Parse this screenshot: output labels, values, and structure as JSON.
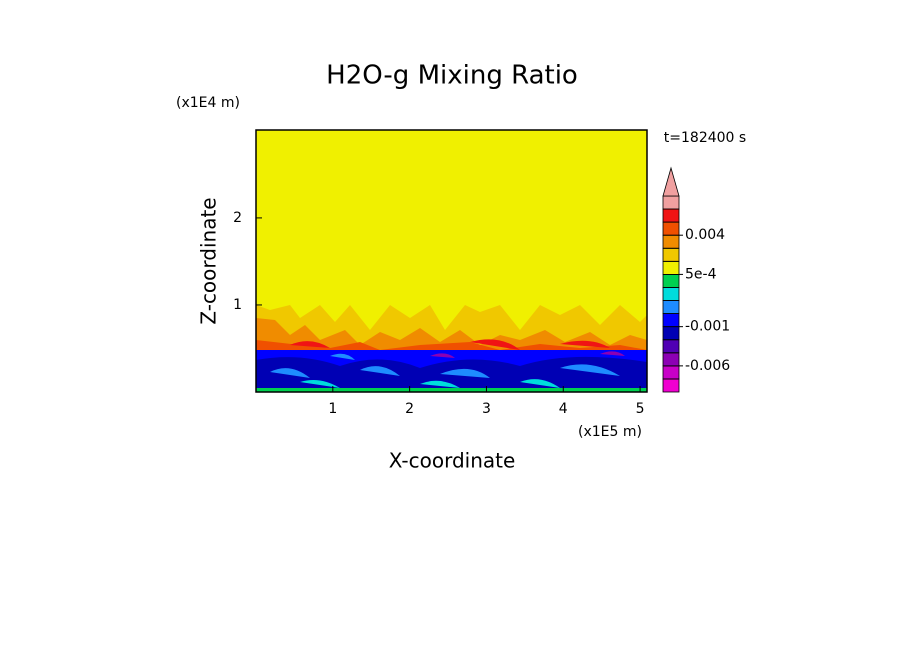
{
  "chart_data": {
    "type": "contour",
    "title": "H2O-g Mixing Ratio",
    "x_label": "X-coordinate",
    "y_label": "Z-coordinate",
    "x_unit": "(x1E5 m)",
    "y_unit": "(x1E4 m)",
    "time_label": "t=182400 s",
    "xlim": [
      0,
      5.09
    ],
    "ylim": [
      0,
      3.01
    ],
    "xticks": [
      1,
      2,
      3,
      4,
      5
    ],
    "yticks": [
      1,
      2
    ],
    "colorbar": {
      "levels": [
        -0.008,
        -0.006,
        -0.004,
        -0.002,
        -0.001,
        -0.0005,
        -0.0001,
        0.0001,
        0.0005,
        0.001,
        0.002,
        0.004,
        0.006,
        0.008
      ],
      "colors": [
        "#f000d0",
        "#c800c8",
        "#8c00b4",
        "#5000b4",
        "#0000b4",
        "#0000ff",
        "#1e8cff",
        "#00dcdc",
        "#00d050",
        "#f0f000",
        "#f0c800",
        "#f08c00",
        "#f05000",
        "#f01414",
        "#f0a0a0"
      ],
      "labels": [
        {
          "value": 0.004,
          "label": "0.004"
        },
        {
          "value": 0.0005,
          "label": "5e-4"
        },
        {
          "value": -0.001,
          "label": "-0.001"
        },
        {
          "value": -0.006,
          "label": "-0.006"
        }
      ]
    }
  }
}
